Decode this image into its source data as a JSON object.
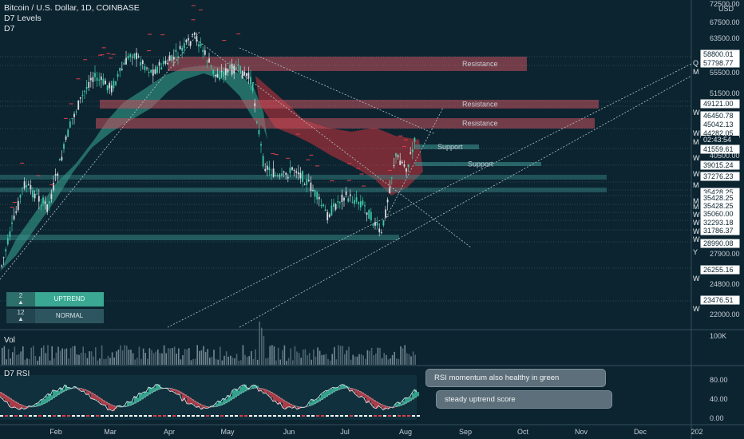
{
  "header": {
    "title": "Bitcoin / U.S. Dollar, 1D, COINBASE",
    "indicator1": "D7 Levels",
    "indicator2": "D7"
  },
  "currency": "USD",
  "price_axis": [
    "72500.00",
    "67500.00",
    "63500.00",
    "55500.00",
    "51500.00",
    "40500.00",
    "27900.00",
    "24800.00",
    "22000.00"
  ],
  "price_tags": [
    {
      "label": "58800.01",
      "marker": "Q"
    },
    {
      "label": "57798.77",
      "marker": "M"
    },
    {
      "label": "49121.00",
      "marker": "W"
    },
    {
      "label": "46450.78",
      "marker": ""
    },
    {
      "label": "45042.13",
      "marker": "W"
    },
    {
      "label": "44282.05",
      "marker": "M"
    },
    {
      "label": "02:43:54",
      "marker": ""
    },
    {
      "label": "41559.61",
      "marker": "W"
    },
    {
      "label": "39015.24",
      "marker": "W"
    },
    {
      "label": "37276.23",
      "marker": "M"
    },
    {
      "label": "35428.25",
      "marker": "M"
    },
    {
      "label": "35428.25",
      "marker": "M"
    },
    {
      "label": "35428.25",
      "marker": "W"
    },
    {
      "label": "35060.00",
      "marker": "W"
    },
    {
      "label": "32293.18",
      "marker": "W"
    },
    {
      "label": "31786.37",
      "marker": "W"
    },
    {
      "label": "28990.08",
      "marker": "Y"
    },
    {
      "label": "26255.16",
      "marker": "W"
    },
    {
      "label": "23476.51",
      "marker": "W"
    }
  ],
  "level_labels": {
    "resistance": "Resistance",
    "support": "Support"
  },
  "trend_score": {
    "row1": {
      "num": "2",
      "arrow": "▲",
      "label": "UPTREND",
      "color": "#3aa893"
    },
    "row2": {
      "num": "12",
      "arrow": "▲",
      "label": "NORMAL",
      "color": "#2d5560"
    }
  },
  "volume_pane": {
    "title": "Vol",
    "axis": "100K"
  },
  "rsi_pane": {
    "title": "D7 RSI",
    "axis": [
      "80.00",
      "40.00",
      "0.00"
    ]
  },
  "notes": {
    "rsi": "RSI momentum also healthy in green",
    "score": "steady uptrend score"
  },
  "time_axis": [
    "Feb",
    "Mar",
    "Apr",
    "May",
    "Jun",
    "Jul",
    "Aug",
    "Sep",
    "Oct",
    "Nov",
    "Dec",
    "202"
  ],
  "colors": {
    "background": "#0b2430",
    "bull": "#3ec9a7",
    "bear": "#e0404b",
    "resistance_zone": "#c8505c",
    "support_zone": "#3a8f8c",
    "cloud_green": "#3aa893",
    "cloud_red": "#a3303b"
  }
}
